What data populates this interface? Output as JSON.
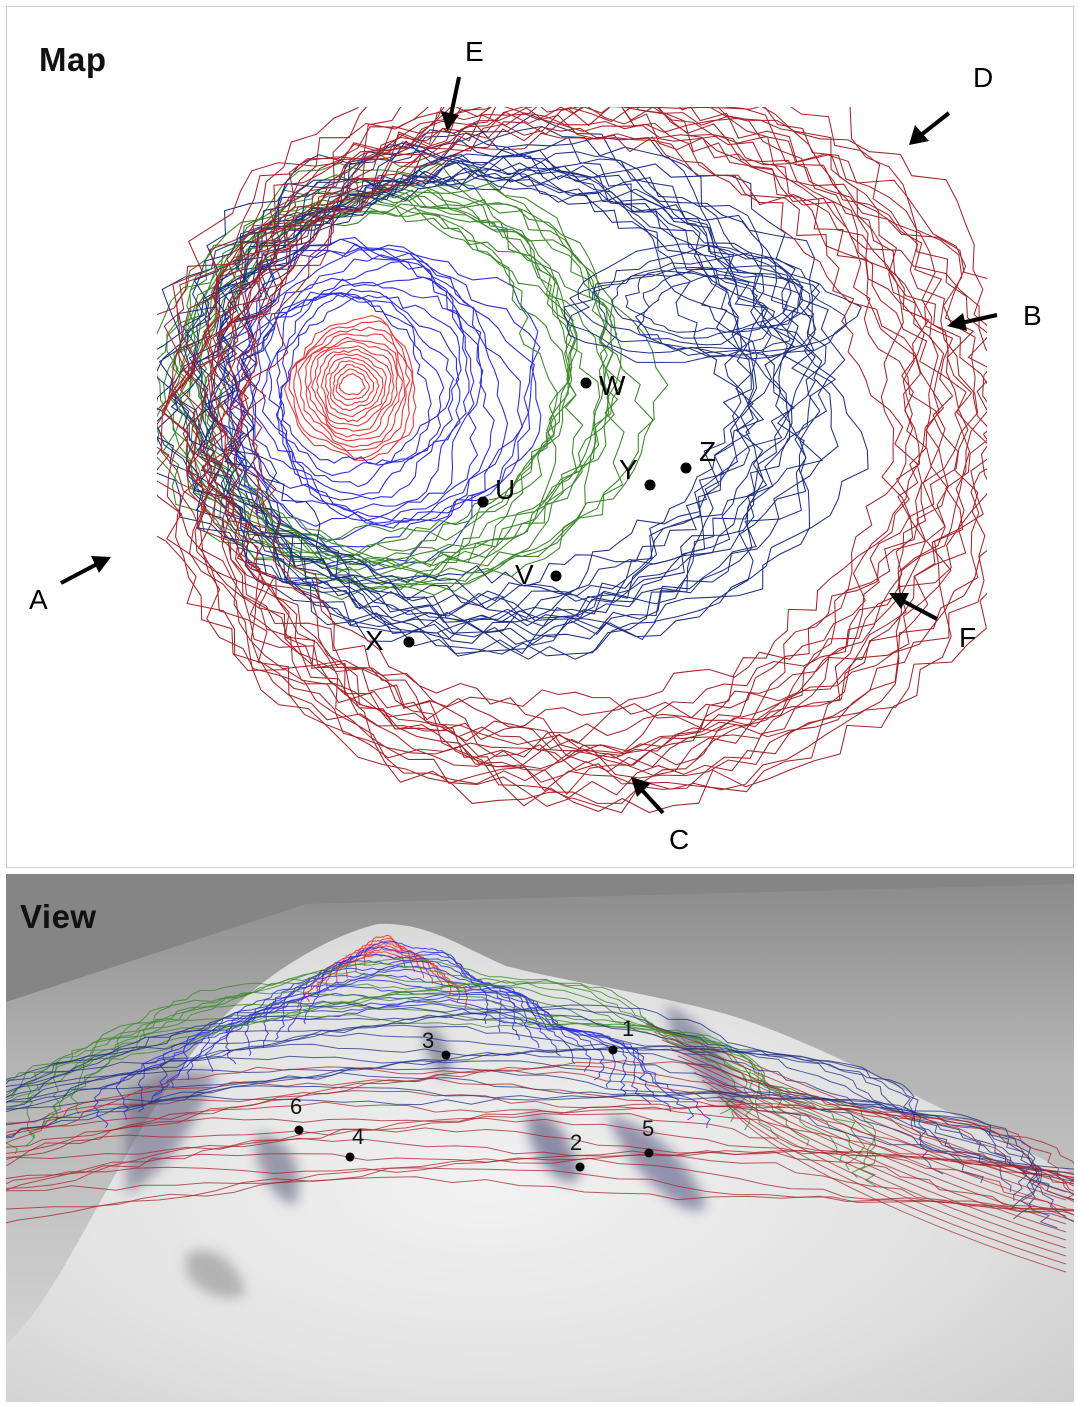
{
  "map": {
    "title": "Map",
    "direction_labels": [
      "A",
      "B",
      "C",
      "D",
      "E",
      "F"
    ],
    "point_labels": [
      "U",
      "V",
      "W",
      "X",
      "Y",
      "Z"
    ]
  },
  "view": {
    "title": "View",
    "point_labels": [
      "1",
      "2",
      "3",
      "4",
      "5",
      "6"
    ]
  },
  "colors": {
    "summit_contours": "#e8383c",
    "upper_contours": "#3030e0",
    "middle_contours": "#3e8a2e",
    "lower_contours": "#1e2f86",
    "base_contours": "#a8242a",
    "markers": "#000000"
  }
}
